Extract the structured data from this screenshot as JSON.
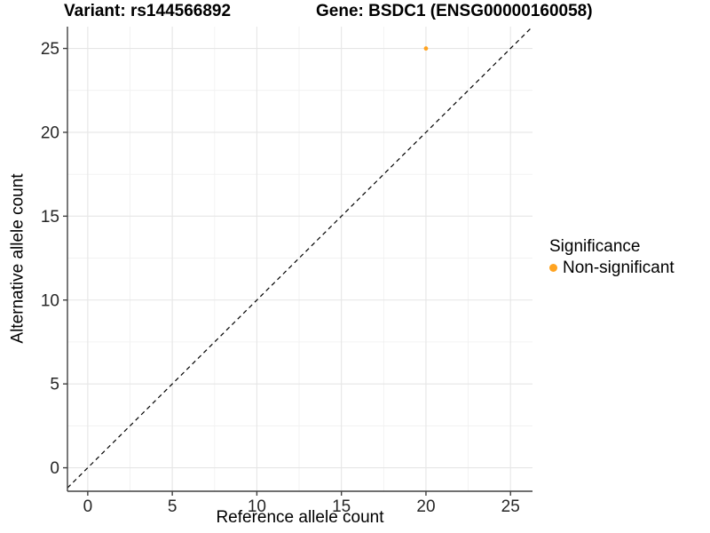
{
  "chart_data": {
    "type": "scatter",
    "title_left": "Variant: rs144566892",
    "title_right": "Gene: BSDC1 (ENSG00000160058)",
    "xlabel": "Reference allele count",
    "ylabel": "Alternative allele count",
    "x_ticks": [
      0,
      5,
      10,
      15,
      20,
      25
    ],
    "y_ticks": [
      0,
      5,
      10,
      15,
      20,
      25
    ],
    "xlim": [
      -1.2,
      26.3
    ],
    "ylim": [
      -1.4,
      26.3
    ],
    "minor_grid_step": 2.5,
    "grid": {
      "major_color": "#E6E6E6",
      "minor_color": "#F1F1F1"
    },
    "identity_line": {
      "equation": "y = x",
      "style": "dashed",
      "color": "#000000"
    },
    "points": [
      {
        "x": 20,
        "y": 25,
        "significance": "Non-significant",
        "color": "#FFA320"
      }
    ],
    "legend": {
      "title": "Significance",
      "position": "right",
      "entries": [
        {
          "label": "Non-significant",
          "color": "#FFA320"
        }
      ]
    },
    "axis_line_color": "#404040",
    "tick_label_color": "#262626"
  }
}
